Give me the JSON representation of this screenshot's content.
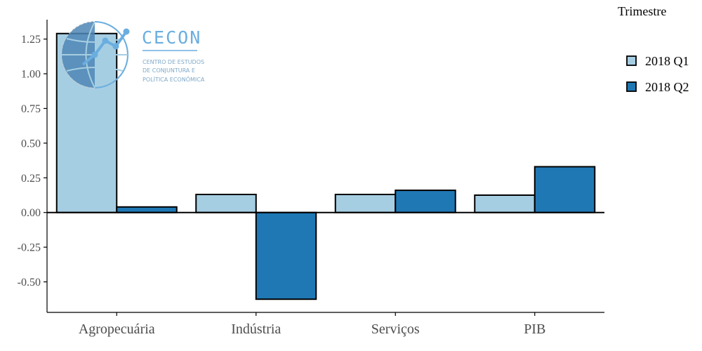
{
  "chart_data": {
    "type": "bar",
    "categories": [
      "Agropecuária",
      "Indústria",
      "Serviços",
      "PIB"
    ],
    "series": [
      {
        "name": "2018 Q1",
        "color": "#a6cee3",
        "values": [
          1.29,
          0.13,
          0.13,
          0.125
        ]
      },
      {
        "name": "2018 Q2",
        "color": "#1f78b4",
        "values": [
          0.04,
          -0.625,
          0.16,
          0.33
        ]
      }
    ],
    "ylim": [
      -0.72,
      1.39
    ],
    "yticks": [
      1.25,
      1.0,
      0.75,
      0.5,
      0.25,
      0.0,
      -0.25,
      -0.5
    ],
    "ytick_labels": [
      "1.25",
      "1.00",
      "0.75",
      "0.50",
      "0.25",
      "0.00",
      "-0.25",
      "-0.50"
    ],
    "legend_title": "Trimestre",
    "legend_placement": "right",
    "grid": false,
    "xlabel": "",
    "ylabel": ""
  },
  "logo": {
    "name": "CECON",
    "line1": "CENTRO DE ESTUDOS",
    "line2": "DE CONJUNTURA E",
    "line3": "POLÍTICA ECONÔMICA"
  }
}
